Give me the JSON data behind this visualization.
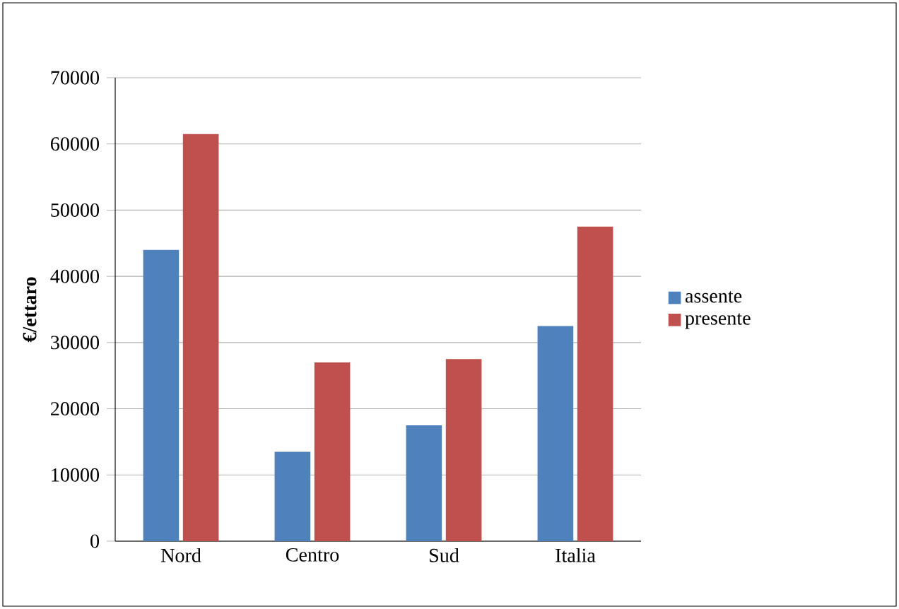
{
  "chart_data": {
    "type": "bar",
    "ylabel": "€/ettaro",
    "categories": [
      "Nord",
      "Centro",
      "Sud",
      "Italia"
    ],
    "series": [
      {
        "name": "assente",
        "color": "#4f81bd",
        "values": [
          44000,
          13500,
          17500,
          32500
        ]
      },
      {
        "name": "presente",
        "color": "#c0504d",
        "values": [
          61500,
          27000,
          27500,
          47500
        ]
      }
    ],
    "ylim": [
      0,
      70000
    ],
    "yticks": [
      0,
      10000,
      20000,
      30000,
      40000,
      50000,
      60000,
      70000
    ],
    "grid": "y",
    "legend": "right"
  }
}
